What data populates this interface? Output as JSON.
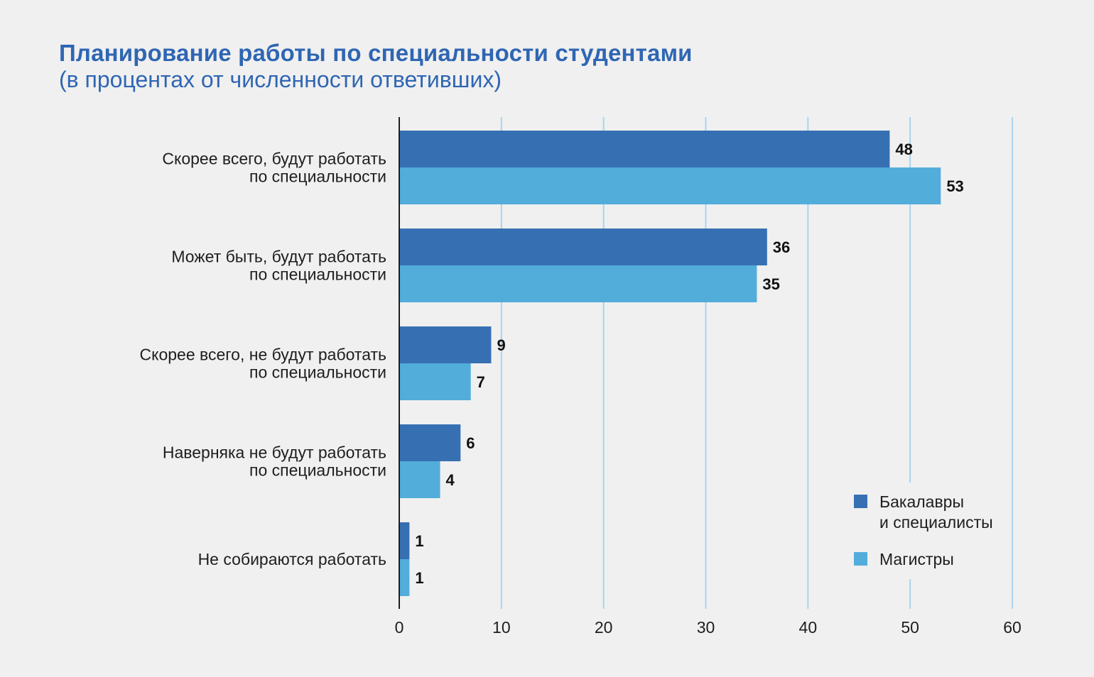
{
  "title": "Планирование работы по специальности студентами",
  "subtitle": "(в процентах от численности ответивших)",
  "colors": {
    "series1": "#3670b2",
    "series2": "#52addb",
    "grid": "#a9d4ee",
    "axis": "#1e1e1e",
    "title": "#2f66b3"
  },
  "chart_data": {
    "type": "bar",
    "orientation": "horizontal",
    "categories": [
      [
        "Скорее всего, будут работать",
        "по специальности"
      ],
      [
        "Может быть, будут работать",
        "по специальности"
      ],
      [
        "Скорее всего, не будут работать",
        "по специальности"
      ],
      [
        "Наверняка не будут работать",
        "по специальности"
      ],
      [
        "Не собираются работать"
      ]
    ],
    "series": [
      {
        "name": "Бакалавры и специалисты",
        "name_lines": [
          "Бакалавры",
          "и специалисты"
        ],
        "values": [
          48,
          36,
          9,
          6,
          1
        ]
      },
      {
        "name": "Магистры",
        "name_lines": [
          "Магистры"
        ],
        "values": [
          53,
          35,
          7,
          4,
          1
        ]
      }
    ],
    "xlim": [
      0,
      60
    ],
    "xticks": [
      0,
      10,
      20,
      30,
      40,
      50,
      60
    ],
    "grid": true,
    "legend_position": "bottom-right",
    "title": "Планирование работы по специальности студентами",
    "subtitle": "(в процентах от численности ответивших)"
  }
}
